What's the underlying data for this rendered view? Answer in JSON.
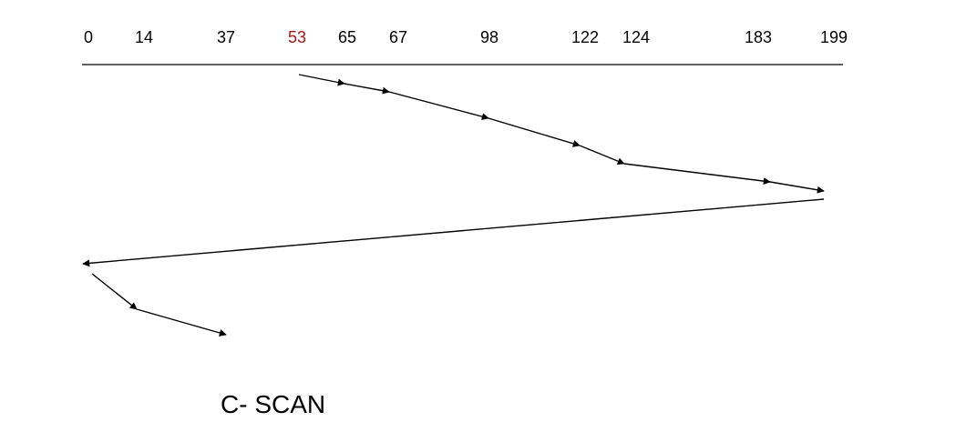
{
  "diagram": {
    "caption": "C- SCAN",
    "track_labels": [
      "0",
      "14",
      "37",
      "53",
      "65",
      "67",
      "98",
      "122",
      "124",
      "183",
      "199"
    ],
    "start_track": "53",
    "start_color": "#a01818",
    "line_color": "#000000",
    "seek_sequence": [
      53,
      65,
      67,
      98,
      122,
      124,
      183,
      199,
      0,
      14,
      37
    ]
  }
}
